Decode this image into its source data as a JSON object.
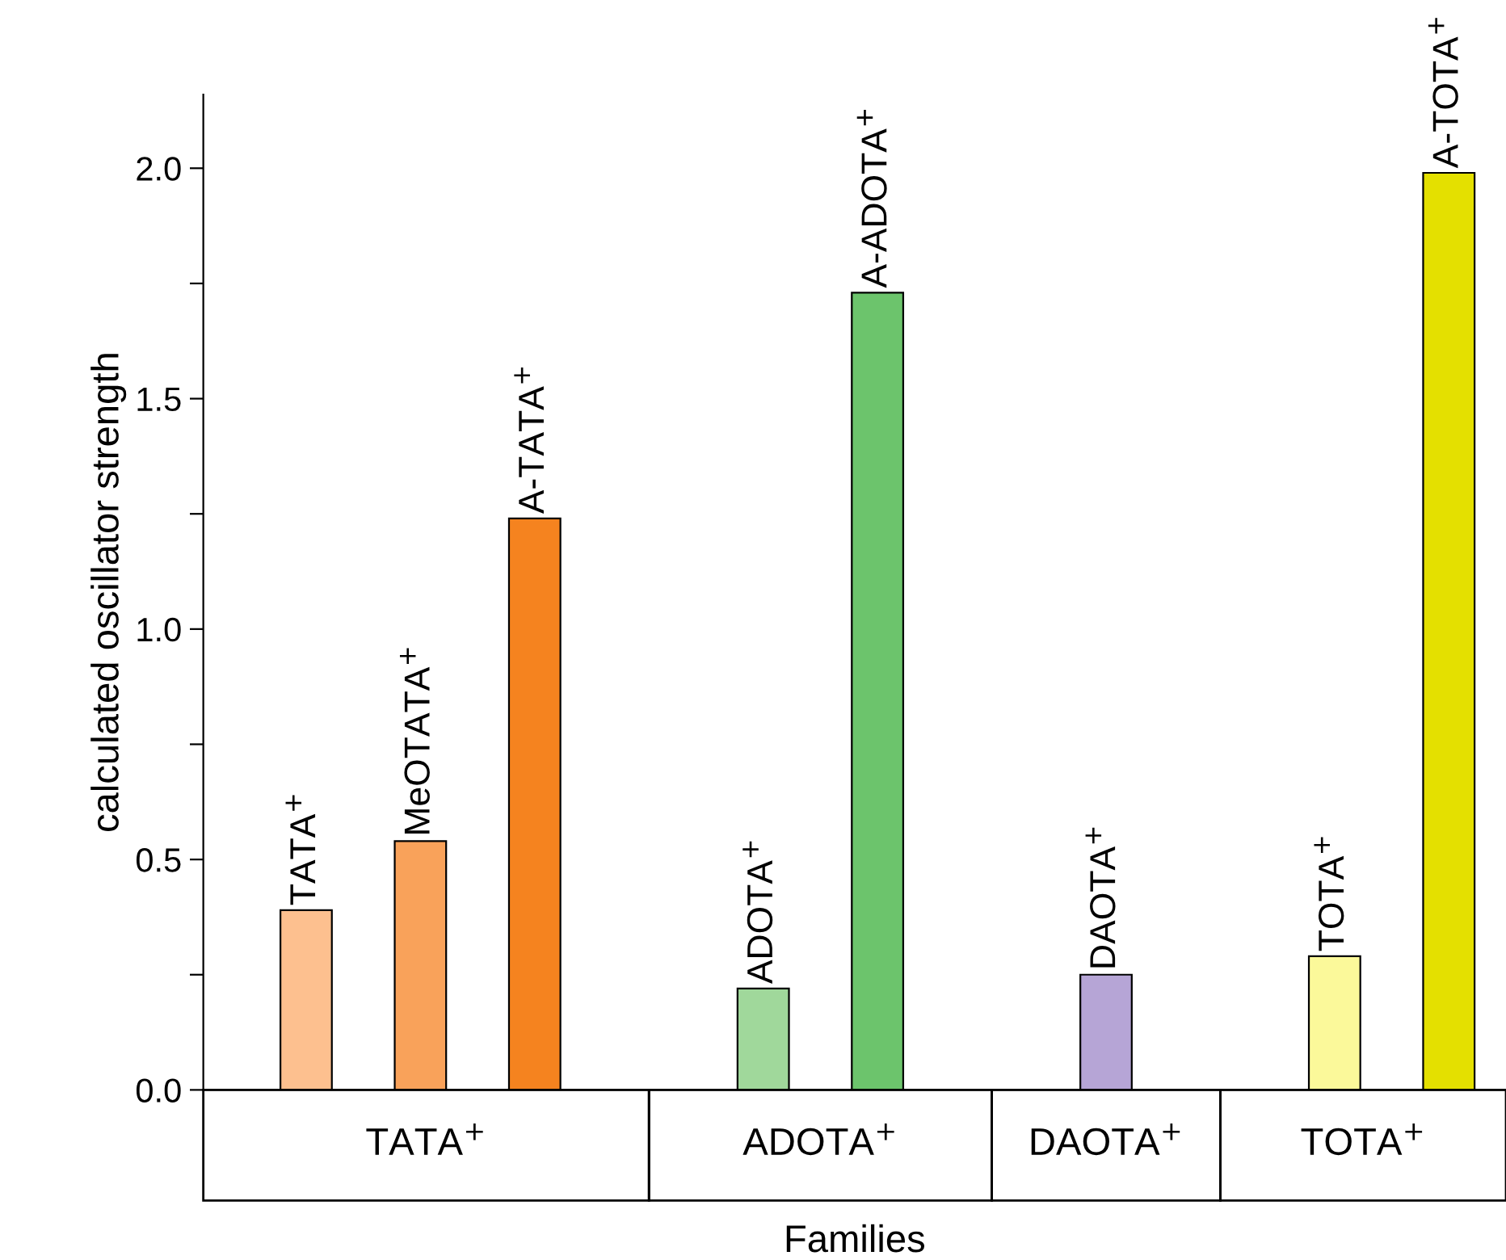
{
  "chart_data": {
    "type": "bar",
    "xlabel": "Families",
    "ylabel": "calculated oscillator strength",
    "categories": [
      "TATA$^{+}$",
      "MeOTATA$^{+}$",
      "A-TATA$^{+}$",
      null,
      "ADOTA$^{+}$",
      "A-ADOTA$^{+}$",
      null,
      "DAOTA$^{+}$",
      null,
      "TOTA$^{+}$",
      "A-TOTA$^{+}$"
    ],
    "values": [
      0.39,
      0.54,
      1.24,
      null,
      0.22,
      1.73,
      null,
      0.25,
      null,
      0.29,
      1.99
    ],
    "colors": [
      "#fdc08f",
      "#f9a25a",
      "#f5831f",
      null,
      "#a0d89b",
      "#6cc46c",
      null,
      "#b6a5d6",
      null,
      "#fbf99a",
      "#e4e000"
    ],
    "annotations": [
      "TATA$^{+}$",
      "ADOTA$^{+}$",
      "DAOTA$^{+}$",
      "TOTA$^{+}$"
    ],
    "ylim": [
      0,
      2.16
    ],
    "yticks": [
      {
        "value": 0,
        "label": "0.0"
      },
      {
        "value": 0.25,
        "label": null
      },
      {
        "value": 0.5,
        "label": "0.5"
      },
      {
        "value": 0.75,
        "label": null
      },
      {
        "value": 1.0,
        "label": "1.0"
      },
      {
        "value": 1.25,
        "label": null
      },
      {
        "value": 1.5,
        "label": "1.5"
      },
      {
        "value": 1.75,
        "label": null
      },
      {
        "value": 2.0,
        "label": "2.0"
      }
    ],
    "tick_labels": "y",
    "grid": false,
    "legend": false
  }
}
